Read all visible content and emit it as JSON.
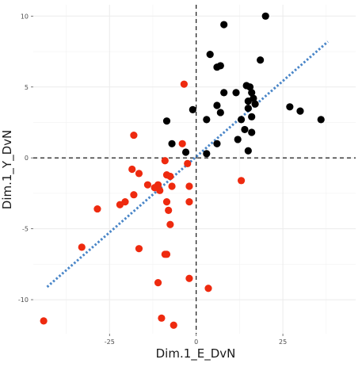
{
  "chart_data": {
    "type": "scatter",
    "title": "",
    "xlabel": "Dim.1_E_DvN",
    "ylabel": "Dim.1_Y_DvN",
    "xlim": [
      -47,
      46
    ],
    "ylim": [
      -12.4,
      10.8
    ],
    "x_ticks": [
      -25,
      0,
      25
    ],
    "y_ticks": [
      -10,
      -5,
      0,
      5,
      10
    ],
    "x_tick_labels": [
      "-25",
      "0",
      "25"
    ],
    "y_tick_labels": [
      "-10",
      "-5",
      "0",
      "5",
      "10"
    ],
    "grid": true,
    "reference_lines": {
      "x": 0,
      "y": 0,
      "style": "dashed",
      "color": "#000000"
    },
    "trend_line": {
      "x": [
        -43,
        38
      ],
      "y": [
        -9.1,
        8.2
      ],
      "color": "#4a86c8",
      "style": "dotted"
    },
    "colors": {
      "concordant": "#000000",
      "discordant": "#ee2a0f"
    },
    "series": [
      {
        "color": "#000000",
        "points": [
          [
            20,
            10
          ],
          [
            8,
            9.4
          ],
          [
            4,
            7.3
          ],
          [
            18.5,
            6.9
          ],
          [
            6,
            6.4
          ],
          [
            7,
            6.5
          ],
          [
            -8.5,
            2.6
          ],
          [
            -7,
            1
          ],
          [
            -3,
            0.4
          ],
          [
            -1,
            3.4
          ],
          [
            3,
            2.7
          ],
          [
            6,
            3.7
          ],
          [
            7,
            3.2
          ],
          [
            8,
            4.6
          ],
          [
            11.5,
            4.6
          ],
          [
            13,
            2.7
          ],
          [
            14.5,
            5.1
          ],
          [
            15.5,
            5
          ],
          [
            16,
            4.6
          ],
          [
            15,
            4
          ],
          [
            16.5,
            4.2
          ],
          [
            17,
            3.8
          ],
          [
            15,
            3.5
          ],
          [
            16,
            2.9
          ],
          [
            16,
            1.8
          ],
          [
            14,
            2
          ],
          [
            12,
            1.3
          ],
          [
            6,
            1
          ],
          [
            15,
            0.5
          ],
          [
            3,
            0.3
          ],
          [
            27,
            3.6
          ],
          [
            30,
            3.3
          ],
          [
            36,
            2.7
          ]
        ]
      },
      {
        "color": "#ee2a0f",
        "points": [
          [
            -44,
            -11.5
          ],
          [
            -33,
            -6.3
          ],
          [
            -28.5,
            -3.6
          ],
          [
            -22,
            -3.3
          ],
          [
            -20.5,
            -3.1
          ],
          [
            -18,
            1.6
          ],
          [
            -18.5,
            -0.8
          ],
          [
            -16.5,
            -1.1
          ],
          [
            -18,
            -2.6
          ],
          [
            -14,
            -1.9
          ],
          [
            -12,
            -2.1
          ],
          [
            -11,
            -1.9
          ],
          [
            -10.5,
            -2.3
          ],
          [
            -9,
            -0.2
          ],
          [
            -8.5,
            -1.2
          ],
          [
            -7.5,
            -1.3
          ],
          [
            -7,
            -2
          ],
          [
            -8.5,
            -3.1
          ],
          [
            -8,
            -3.7
          ],
          [
            -7.5,
            -4.7
          ],
          [
            -4,
            1
          ],
          [
            -3.5,
            5.2
          ],
          [
            -2.5,
            -0.4
          ],
          [
            -2,
            -2
          ],
          [
            -2,
            -3.1
          ],
          [
            -16.5,
            -6.4
          ],
          [
            -9,
            -6.8
          ],
          [
            -8.5,
            -6.8
          ],
          [
            -2,
            -8.5
          ],
          [
            -11,
            -8.8
          ],
          [
            -10,
            -11.3
          ],
          [
            -6.5,
            -11.8
          ],
          [
            3.5,
            -9.2
          ],
          [
            13,
            -1.6
          ]
        ]
      }
    ]
  }
}
